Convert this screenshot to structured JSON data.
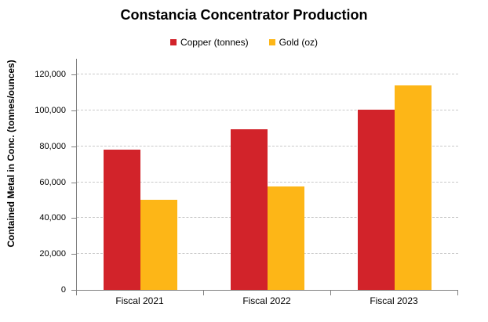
{
  "title": "Constancia Concentrator Production",
  "y_axis_title": "Contained Metal in Conc. (tonnes/ounces)",
  "chart_data": {
    "type": "bar",
    "title": "Constancia Concentrator Production",
    "ylabel": "Contained Metal in Conc. (tonnes/ounces)",
    "xlabel": "",
    "categories": [
      "Fiscal 2021",
      "Fiscal 2022",
      "Fiscal 2023"
    ],
    "series": [
      {
        "name": "Copper (tonnes)",
        "color": "#D2232A",
        "values": [
          78000,
          89500,
          100500
        ]
      },
      {
        "name": "Gold (oz)",
        "color": "#FDB617",
        "values": [
          50000,
          57500,
          114000
        ]
      }
    ],
    "ylim": [
      0,
      128000
    ],
    "ytick_interval": 20000,
    "yticks": [
      0,
      20000,
      40000,
      60000,
      80000,
      100000,
      120000
    ],
    "grid": true,
    "legend_position": "top-center"
  },
  "colors": {
    "copper": "#D2232A",
    "gold": "#FDB617",
    "axis": "#808080",
    "gridline": "#C9C9C9",
    "background": "#FFFFFF",
    "text": "#000000"
  }
}
